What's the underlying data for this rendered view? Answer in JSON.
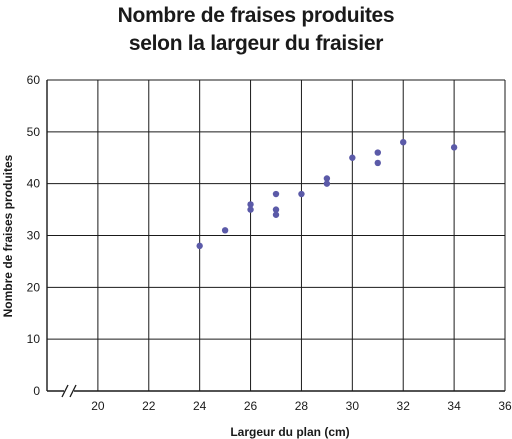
{
  "chart_data": {
    "type": "scatter",
    "title_lines": [
      "Nombre de fraises produites",
      "selon la largeur du fraisier"
    ],
    "xlabel": "Largeur du plan (cm)",
    "ylabel": "Nombre de fraises produites",
    "xlim": [
      18,
      36
    ],
    "ylim": [
      0,
      60
    ],
    "x_ticks": [
      20,
      22,
      24,
      26,
      28,
      30,
      32,
      34,
      36
    ],
    "y_ticks": [
      0,
      10,
      20,
      30,
      40,
      50,
      60
    ],
    "x_axis_break": true,
    "grid": true,
    "point_color": "#5b5aa8",
    "points": [
      {
        "x": 24,
        "y": 28
      },
      {
        "x": 25,
        "y": 31
      },
      {
        "x": 26,
        "y": 35
      },
      {
        "x": 26,
        "y": 36
      },
      {
        "x": 27,
        "y": 34
      },
      {
        "x": 27,
        "y": 35
      },
      {
        "x": 27,
        "y": 38
      },
      {
        "x": 28,
        "y": 38
      },
      {
        "x": 29,
        "y": 40
      },
      {
        "x": 29,
        "y": 41
      },
      {
        "x": 30,
        "y": 45
      },
      {
        "x": 31,
        "y": 44
      },
      {
        "x": 31,
        "y": 46
      },
      {
        "x": 32,
        "y": 48
      },
      {
        "x": 34,
        "y": 47
      }
    ]
  }
}
